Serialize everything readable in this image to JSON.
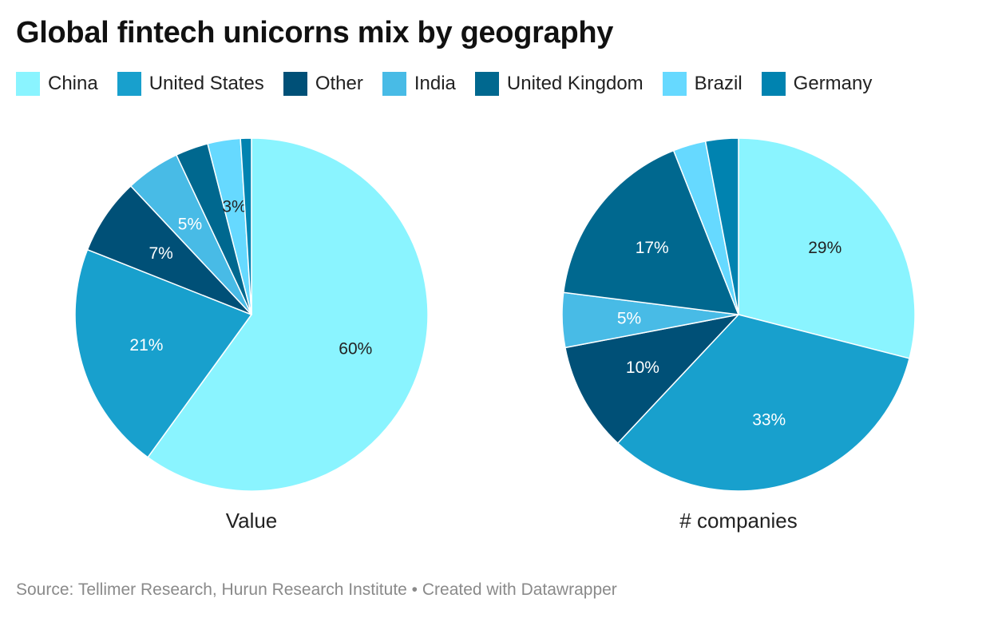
{
  "title": "Global fintech unicorns mix by geography",
  "legend": [
    {
      "name": "China",
      "color": "#8af4ff"
    },
    {
      "name": "United States",
      "color": "#18a0cd"
    },
    {
      "name": "Other",
      "color": "#005077"
    },
    {
      "name": "India",
      "color": "#48bbe6"
    },
    {
      "name": "United Kingdom",
      "color": "#00688f"
    },
    {
      "name": "Brazil",
      "color": "#66d9ff"
    },
    {
      "name": "Germany",
      "color": "#0083b0"
    }
  ],
  "chart_data": [
    {
      "type": "pie",
      "title": "Value",
      "categories": [
        "China",
        "United States",
        "Other",
        "India",
        "United Kingdom",
        "Brazil",
        "Germany"
      ],
      "values": [
        60,
        21,
        7,
        5,
        3,
        3,
        1
      ],
      "labels": [
        "60%",
        "21%",
        "7%",
        "5%",
        "",
        "3%",
        ""
      ],
      "label_colors": [
        "#222222",
        "#ffffff",
        "#ffffff",
        "#ffffff",
        "#ffffff",
        "#222222",
        "#ffffff"
      ]
    },
    {
      "type": "pie",
      "title": "# companies",
      "categories": [
        "China",
        "United States",
        "Other",
        "India",
        "United Kingdom",
        "Brazil",
        "Germany"
      ],
      "values": [
        29,
        33,
        10,
        5,
        17,
        3,
        3
      ],
      "labels": [
        "29%",
        "33%",
        "10%",
        "5%",
        "17%",
        "",
        ""
      ],
      "label_colors": [
        "#222222",
        "#ffffff",
        "#ffffff",
        "#ffffff",
        "#ffffff",
        "#222222",
        "#ffffff"
      ]
    }
  ],
  "source": "Source: Tellimer Research, Hurun Research Institute • Created with Datawrapper"
}
